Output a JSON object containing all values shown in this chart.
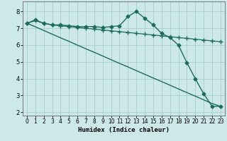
{
  "xlabel": "Humidex (Indice chaleur)",
  "bg_color": "#cce8e8",
  "grid_color": "#aacccc",
  "line_color": "#1e6b5e",
  "xlim": [
    -0.5,
    23.5
  ],
  "ylim": [
    1.8,
    8.6
  ],
  "yticks": [
    2,
    3,
    4,
    5,
    6,
    7,
    8
  ],
  "xticks": [
    0,
    1,
    2,
    3,
    4,
    5,
    6,
    7,
    8,
    9,
    10,
    11,
    12,
    13,
    14,
    15,
    16,
    17,
    18,
    19,
    20,
    21,
    22,
    23
  ],
  "series": [
    {
      "x": [
        0,
        1,
        2,
        3,
        4,
        5,
        6,
        7,
        8,
        9,
        10,
        11,
        12,
        13,
        14,
        15,
        16,
        17,
        18,
        19,
        20,
        21,
        22,
        23
      ],
      "y": [
        7.3,
        7.5,
        7.3,
        7.2,
        7.2,
        7.15,
        7.1,
        7.1,
        7.1,
        7.05,
        7.1,
        7.15,
        7.7,
        8.0,
        7.6,
        7.2,
        6.7,
        6.45,
        6.0,
        4.95,
        4.0,
        3.1,
        2.35,
        2.35
      ],
      "marker": "D",
      "markersize": 2.5,
      "linewidth": 1.0
    },
    {
      "x": [
        0,
        1,
        2,
        3,
        4,
        5,
        6,
        7,
        8,
        9,
        10,
        11,
        12,
        13,
        14,
        15,
        16,
        17,
        18,
        19,
        20,
        21,
        22,
        23
      ],
      "y": [
        7.3,
        7.45,
        7.3,
        7.2,
        7.15,
        7.1,
        7.05,
        7.0,
        6.95,
        6.9,
        6.85,
        6.8,
        6.75,
        6.7,
        6.65,
        6.6,
        6.55,
        6.5,
        6.45,
        6.4,
        6.35,
        6.3,
        6.25,
        6.2
      ],
      "marker": "+",
      "markersize": 4,
      "linewidth": 0.9
    },
    {
      "x": [
        0,
        1,
        2,
        3,
        4,
        5,
        6,
        7,
        8,
        9,
        10,
        11,
        12,
        13,
        14,
        15,
        16,
        17,
        18,
        19,
        20,
        21,
        22,
        23
      ],
      "y": [
        7.3,
        7.09,
        6.87,
        6.65,
        6.43,
        6.22,
        6.0,
        5.78,
        5.57,
        5.35,
        5.13,
        4.91,
        4.7,
        4.48,
        4.26,
        4.04,
        3.83,
        3.61,
        3.39,
        3.17,
        2.96,
        2.74,
        2.52,
        2.35
      ],
      "marker": null,
      "markersize": 0,
      "linewidth": 1.0
    }
  ]
}
